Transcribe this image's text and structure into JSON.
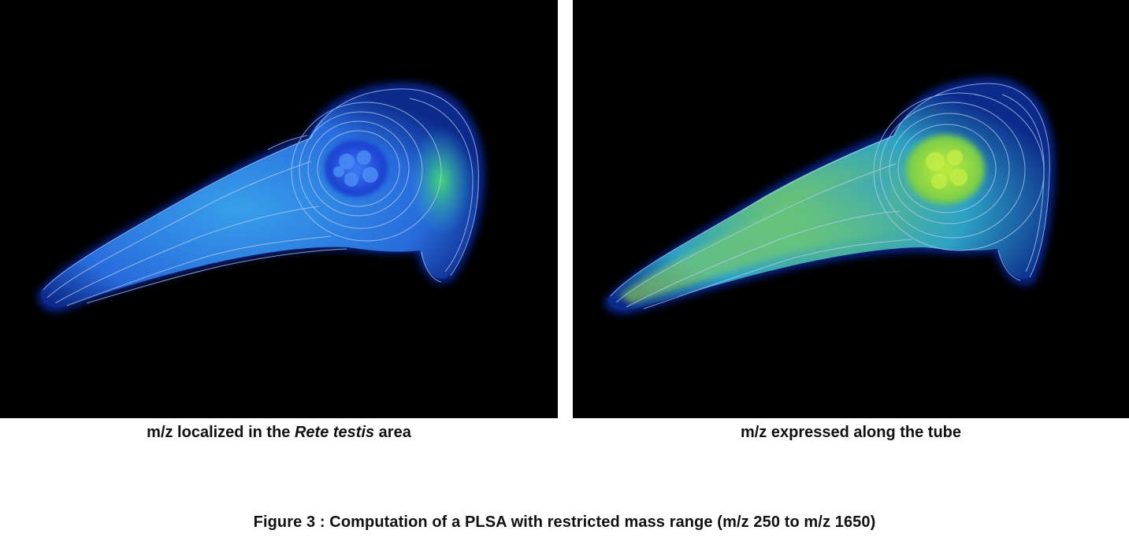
{
  "panels": {
    "left": {
      "caption_before": "m/z localized in the ",
      "caption_italic": "Rete testis",
      "caption_after": " area",
      "colors": {
        "body": "#2f8fe8",
        "core": "#1f4fe0",
        "contour": "#a8c8f0",
        "hot": "#3fd66a"
      }
    },
    "right": {
      "caption": "m/z expressed along the tube",
      "colors": {
        "body": "#39b8c8",
        "core": "#a8e63a",
        "contour": "#a8c8f0",
        "hot": "#b4e83a"
      }
    }
  },
  "figure": {
    "title": "Figure 3 : Computation of a PLSA with restricted mass range (m/z 250 to m/z 1650)"
  }
}
